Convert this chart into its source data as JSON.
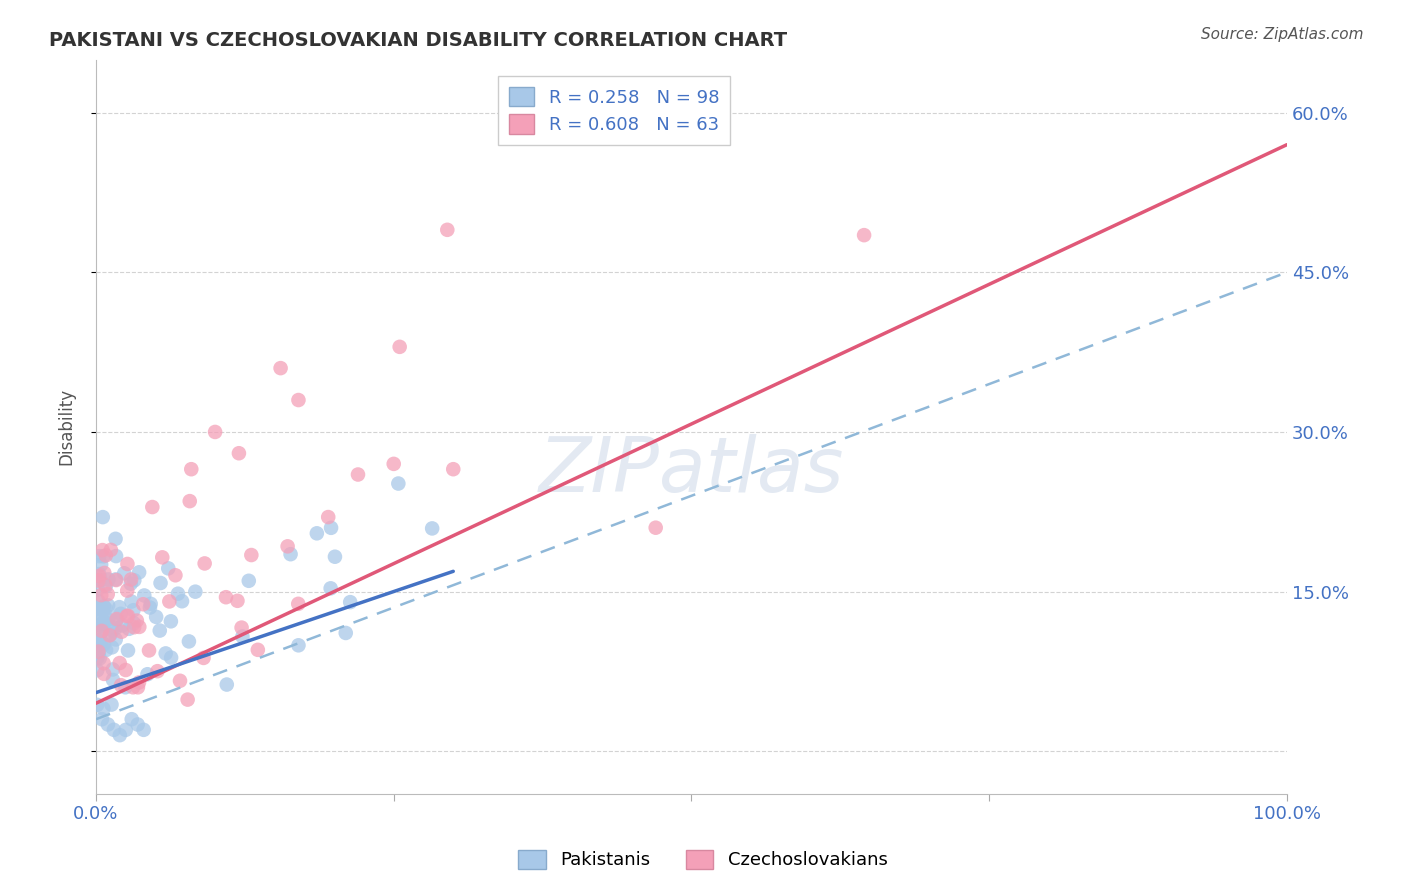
{
  "title": "PAKISTANI VS CZECHOSLOVAKIAN DISABILITY CORRELATION CHART",
  "source": "Source: ZipAtlas.com",
  "ylabel": "Disability",
  "pakistani_color": "#a8c8e8",
  "czechoslovakian_color": "#f4a0b8",
  "pakistani_R": 0.258,
  "pakistani_N": 98,
  "czechoslovakian_R": 0.608,
  "czechoslovakian_N": 63,
  "trend_blue_color": "#4472c4",
  "trend_pink_color": "#e05878",
  "trend_dashed_color": "#90b8d8",
  "xlim": [
    0.0,
    1.0
  ],
  "ylim": [
    -0.04,
    0.65
  ],
  "ytick_vals": [
    0.0,
    0.15,
    0.3,
    0.45,
    0.6
  ],
  "ytick_labels": [
    "",
    "15.0%",
    "30.0%",
    "45.0%",
    "60.0%"
  ],
  "xtick_vals": [
    0.0,
    0.25,
    0.5,
    0.75,
    1.0
  ],
  "xtick_labels": [
    "0.0%",
    "",
    "",
    "",
    "100.0%"
  ],
  "pak_trend_x_end": 0.3,
  "trend_pink_slope": 0.525,
  "trend_pink_intercept": 0.045,
  "trend_dashed_slope": 0.42,
  "trend_dashed_intercept": 0.03,
  "trend_blue_slope": 0.38,
  "trend_blue_intercept": 0.055
}
